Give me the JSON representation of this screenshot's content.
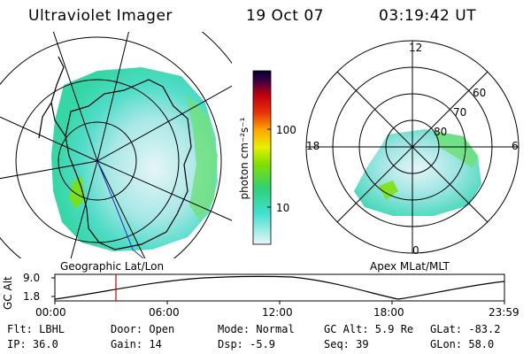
{
  "header": {
    "title": "Ultraviolet Imager",
    "date": "19 Oct 07",
    "time": "03:19:42 UT"
  },
  "colorbar": {
    "unit_label": "photon cm⁻²s⁻¹",
    "ticks": [
      "100",
      "10"
    ],
    "gradient_colors": [
      "#e8f4f8",
      "#40e0d0",
      "#2fd07a",
      "#7fe000",
      "#e8f000",
      "#ffa500",
      "#e8300a",
      "#c00010",
      "#400040",
      "#000030"
    ]
  },
  "left_panel": {
    "caption": "Geographic Lat/Lon"
  },
  "right_panel": {
    "caption": "Apex MLat/MLT",
    "mlt_labels": {
      "top": "12",
      "left": "18",
      "right": "6",
      "bottom": "0"
    },
    "mlat_labels": [
      "60",
      "70",
      "80"
    ]
  },
  "timeline": {
    "y_label": "GC Alt",
    "y_ticks": [
      "9.0",
      "1.8"
    ],
    "x_ticks": [
      "00:00",
      "06:00",
      "12:00",
      "18:00",
      "23:59"
    ],
    "marker_color": "#cc0000"
  },
  "footer": {
    "flt": "Flt: LBHL",
    "ip": "IP: 36.0",
    "door": "Door: Open",
    "gain": "Gain: 14",
    "mode": "Mode: Normal",
    "dsp": "Dsp:    -5.9",
    "gc_alt": "GC Alt: 5.9 Re",
    "seq": "Seq: 39",
    "glat": "GLat: -83.2",
    "glon": "GLon:  58.0"
  }
}
